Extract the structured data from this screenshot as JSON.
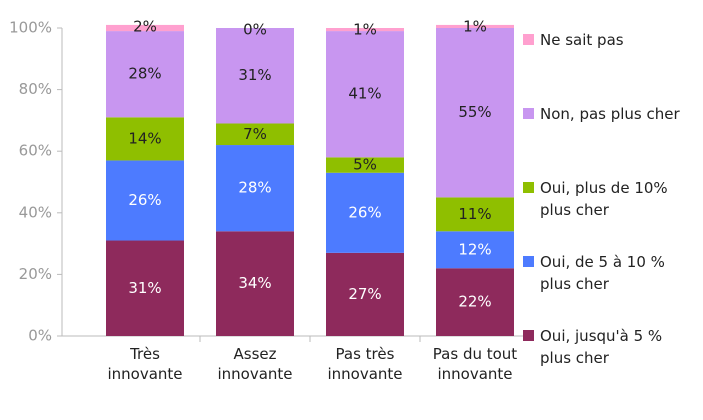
{
  "chart_data": {
    "type": "stacked_bar",
    "categories": [
      "Très innovante",
      "Assez innovante",
      "Pas très innovante",
      "Pas du tout innovante"
    ],
    "series": [
      {
        "name": "Oui, jusqu'à 5 % plus cher",
        "color": "#8e2a5c",
        "values": [
          31,
          34,
          27,
          22
        ],
        "value_labels": [
          "31%",
          "34%",
          "27%",
          "22%"
        ]
      },
      {
        "name": "Oui, de 5 à 10 % plus cher",
        "color": "#4d7bff",
        "values": [
          26,
          28,
          26,
          12
        ],
        "value_labels": [
          "26%",
          "28%",
          "26%",
          "12%"
        ]
      },
      {
        "name": "Oui, plus de 10% plus cher",
        "color": "#8fbf00",
        "values": [
          14,
          7,
          5,
          11
        ],
        "value_labels": [
          "14%",
          "7%",
          "5%",
          "11%"
        ]
      },
      {
        "name": "Non, pas plus cher",
        "color": "#c896f0",
        "values": [
          28,
          31,
          41,
          55
        ],
        "value_labels": [
          "28%",
          "31%",
          "41%",
          "55%"
        ]
      },
      {
        "name": "Ne sait pas",
        "color": "#ffa0cf",
        "values": [
          2,
          0,
          1,
          1
        ],
        "value_labels": [
          "2%",
          "0%",
          "1%",
          "1%"
        ]
      }
    ],
    "ylim": [
      0,
      100
    ],
    "yticks": [
      {
        "value": 0,
        "label": "0%"
      },
      {
        "value": 20,
        "label": "20%"
      },
      {
        "value": 40,
        "label": "40%"
      },
      {
        "value": 60,
        "label": "60%"
      },
      {
        "value": 80,
        "label": "80%"
      },
      {
        "value": 100,
        "label": "100%"
      }
    ],
    "legend": "right"
  }
}
